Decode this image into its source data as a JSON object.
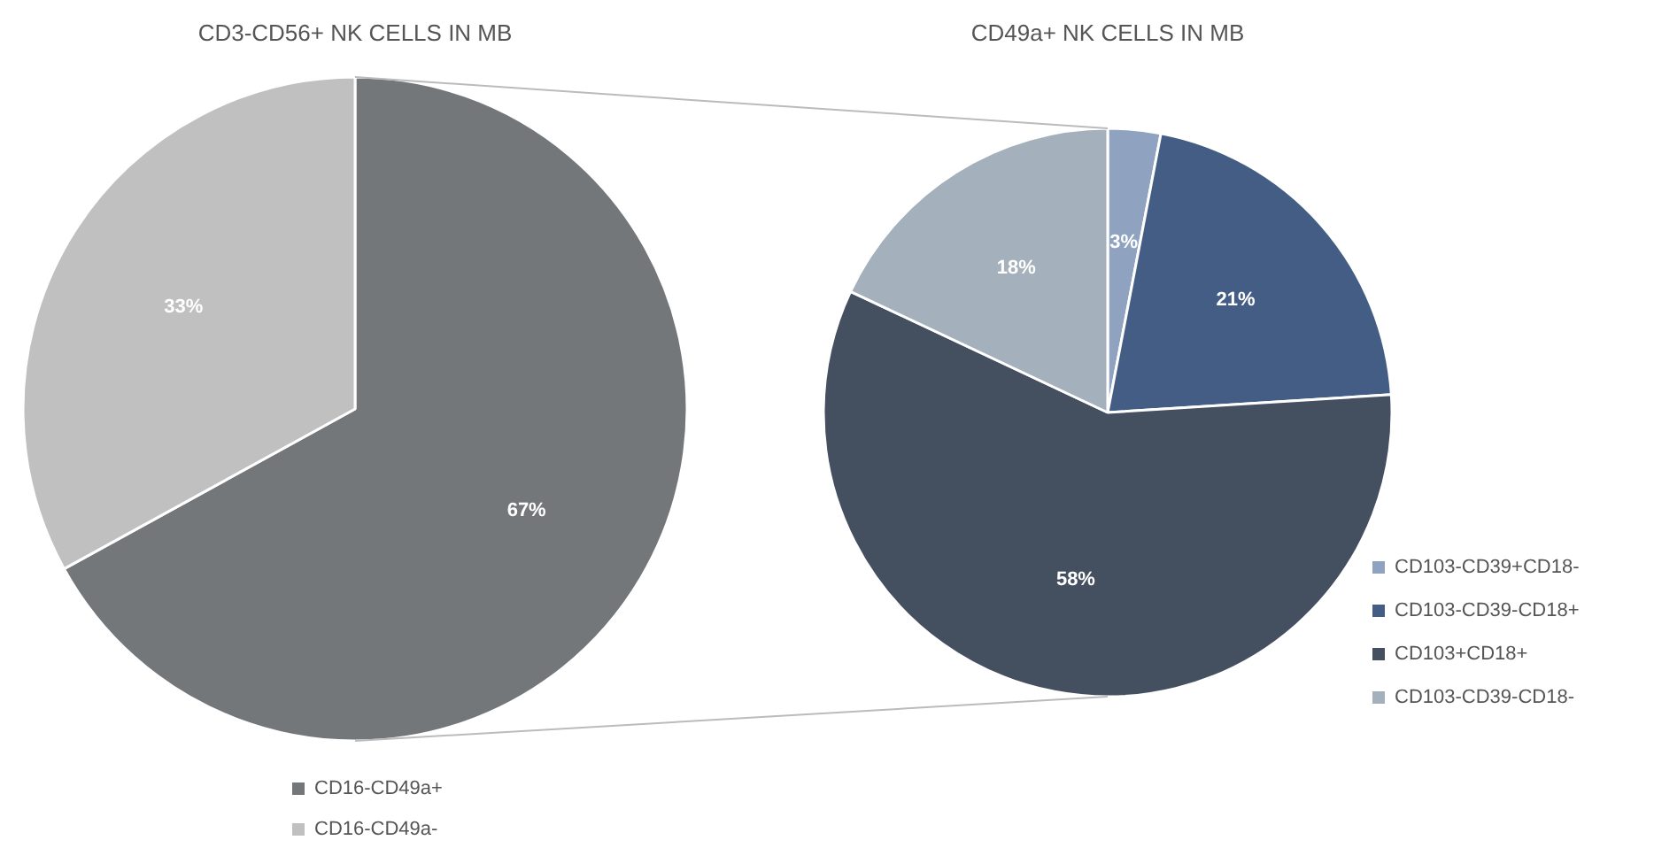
{
  "chart_data": [
    {
      "type": "pie",
      "title": "CD3-CD56+ NK CELLS IN MB",
      "categories": [
        "CD16-CD49a+",
        "CD16-CD49a-"
      ],
      "values": [
        67,
        33
      ],
      "colors": [
        "#74777a",
        "#c0c0c0"
      ],
      "value_labels": [
        "67%",
        "33%"
      ],
      "legend": "bottom"
    },
    {
      "type": "pie",
      "title": "CD49a+ NK CELLS IN MB",
      "categories": [
        "CD103-CD39+CD18-",
        "CD103-CD39-CD18+",
        "CD103+CD18+",
        "CD103-CD39-CD18-"
      ],
      "values": [
        3,
        21,
        58,
        18
      ],
      "colors": [
        "#8fa3c0",
        "#445d85",
        "#444f60",
        "#a4b0bc"
      ],
      "value_labels": [
        "3%",
        "21%",
        "58%",
        "18%"
      ],
      "legend": "right"
    }
  ]
}
